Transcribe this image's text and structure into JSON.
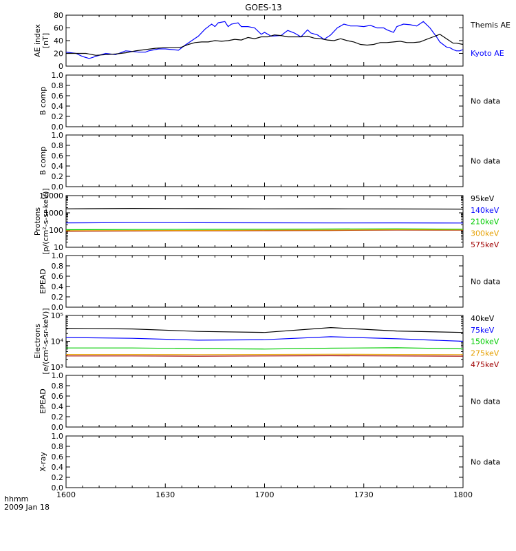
{
  "title": "GOES-13",
  "date_label": "2009 Jan 18",
  "time_unit_label": "hhmm",
  "x_ticks": [
    "1600",
    "1630",
    "1700",
    "1730",
    "1800"
  ],
  "no_data_text": "No data",
  "chart_data": [
    {
      "id": "ae",
      "type": "line",
      "ylabel": [
        "AE index",
        "[nT]"
      ],
      "ylim": [
        0,
        80
      ],
      "yticks": [
        0,
        20,
        40,
        60,
        80
      ],
      "x_range_minutes": [
        0,
        120
      ],
      "series": [
        {
          "name": "Kyoto AE",
          "color": "#0000ff",
          "x": [
            0,
            3,
            5,
            7,
            10,
            12,
            15,
            18,
            20,
            22,
            24,
            25,
            28,
            30,
            32,
            34,
            36,
            38,
            40,
            42,
            44,
            45,
            46,
            48,
            49,
            50,
            52,
            53,
            55,
            57,
            59,
            60,
            62,
            65,
            67,
            69,
            71,
            73,
            74,
            76,
            78,
            80,
            82,
            84,
            86,
            88,
            90,
            92,
            94,
            96,
            97,
            99,
            100,
            102,
            104,
            106,
            108,
            110,
            112,
            113,
            115,
            116,
            117,
            118,
            119,
            120
          ],
          "y": [
            22,
            20,
            15,
            12,
            17,
            20,
            18,
            24,
            23,
            22,
            22,
            24,
            27,
            27,
            26,
            25,
            33,
            40,
            47,
            58,
            66,
            62,
            68,
            70,
            62,
            66,
            68,
            62,
            62,
            60,
            50,
            53,
            47,
            48,
            56,
            52,
            46,
            57,
            52,
            49,
            42,
            49,
            60,
            66,
            63,
            63,
            62,
            64,
            60,
            60,
            57,
            53,
            62,
            66,
            65,
            63,
            70,
            60,
            46,
            38,
            30,
            29,
            26,
            24,
            24,
            26
          ]
        },
        {
          "name": "Themis AE",
          "color": "#000000",
          "x": [
            0,
            3,
            6,
            9,
            12,
            15,
            18,
            21,
            24,
            27,
            30,
            33,
            35,
            37,
            39,
            41,
            43,
            45,
            47,
            49,
            51,
            53,
            55,
            57,
            59,
            61,
            63,
            65,
            67,
            69,
            71,
            73,
            75,
            77,
            79,
            81,
            83,
            85,
            87,
            89,
            91,
            93,
            95,
            97,
            99,
            101,
            103,
            105,
            107,
            109,
            111,
            113,
            115,
            117,
            118,
            120
          ],
          "y": [
            20,
            20,
            20,
            17,
            18,
            19,
            21,
            24,
            26,
            28,
            29,
            29,
            30,
            34,
            37,
            38,
            38,
            40,
            39,
            40,
            42,
            41,
            45,
            43,
            46,
            46,
            49,
            48,
            46,
            46,
            46,
            47,
            44,
            43,
            41,
            40,
            43,
            40,
            38,
            34,
            33,
            34,
            37,
            37,
            38,
            39,
            37,
            37,
            38,
            42,
            46,
            50,
            43,
            36,
            36,
            34
          ]
        }
      ]
    },
    {
      "id": "b1",
      "type": "line",
      "ylabel": [
        "B comp"
      ],
      "ylim": [
        0,
        1
      ],
      "yticks": [
        "0.0",
        "0.2",
        "0.4",
        "0.6",
        "0.8",
        "1.0"
      ],
      "series": []
    },
    {
      "id": "b2",
      "type": "line",
      "ylabel": [
        "B comp"
      ],
      "ylim": [
        0,
        1
      ],
      "yticks": [
        "0.0",
        "0.2",
        "0.4",
        "0.6",
        "0.8",
        "1.0"
      ],
      "series": []
    },
    {
      "id": "protons",
      "type": "line",
      "log_scale": true,
      "ylabel": [
        "Protons",
        "[p/(cm²-s-sr-keV)]"
      ],
      "ylim": [
        10,
        10000
      ],
      "yticks": [
        "10",
        "100",
        "1000",
        "10000"
      ],
      "x_range_minutes": [
        0,
        120
      ],
      "series": [
        {
          "name": "575keV",
          "color": "#a00000",
          "x": [
            0,
            20,
            40,
            60,
            80,
            100,
            120
          ],
          "y": [
            85,
            88,
            90,
            92,
            95,
            100,
            98
          ]
        },
        {
          "name": "300keV",
          "color": "#e6a000",
          "x": [
            0,
            20,
            40,
            60,
            80,
            100,
            120
          ],
          "y": [
            92,
            94,
            95,
            98,
            100,
            105,
            103
          ]
        },
        {
          "name": "210keV",
          "color": "#00cc00",
          "x": [
            0,
            20,
            40,
            60,
            80,
            100,
            120
          ],
          "y": [
            105,
            108,
            110,
            112,
            115,
            118,
            112
          ]
        },
        {
          "name": "140keV",
          "color": "#0000ff",
          "x": [
            0,
            20,
            40,
            60,
            80,
            100,
            120
          ],
          "y": [
            260,
            270,
            265,
            262,
            258,
            260,
            255
          ]
        },
        {
          "name": "95keV",
          "color": "#000000",
          "x": [
            0,
            20,
            40,
            60,
            80,
            100,
            120
          ],
          "y": [
            1700,
            1800,
            1750,
            1700,
            1720,
            1680,
            1650
          ]
        }
      ]
    },
    {
      "id": "epead1",
      "type": "line",
      "ylabel": [
        "EPEAD"
      ],
      "ylim": [
        0,
        1
      ],
      "yticks": [
        "0.0",
        "0.2",
        "0.4",
        "0.6",
        "0.8",
        "1.0"
      ],
      "series": []
    },
    {
      "id": "electrons",
      "type": "line",
      "log_scale": true,
      "ylabel": [
        "Electrons",
        "[e/(cm²-s-sr-keV)]"
      ],
      "ylim": [
        1000,
        100000
      ],
      "yticks": [
        "10³",
        "10⁴",
        "10⁵"
      ],
      "x_range_minutes": [
        0,
        120
      ],
      "series": [
        {
          "name": "475keV",
          "color": "#a00000",
          "x": [
            0,
            20,
            40,
            60,
            80,
            100,
            120
          ],
          "y": [
            2700,
            2700,
            2650,
            2700,
            2750,
            2700,
            2650
          ]
        },
        {
          "name": "275keV",
          "color": "#e6a000",
          "x": [
            0,
            20,
            40,
            60,
            80,
            100,
            120
          ],
          "y": [
            3100,
            3100,
            3050,
            3100,
            3150,
            3100,
            3050
          ]
        },
        {
          "name": "150keV",
          "color": "#00cc00",
          "x": [
            0,
            20,
            40,
            60,
            80,
            100,
            120
          ],
          "y": [
            5500,
            5500,
            5200,
            5000,
            5400,
            5600,
            5100
          ]
        },
        {
          "name": "75keV",
          "color": "#0000ff",
          "x": [
            0,
            20,
            40,
            60,
            80,
            100,
            120
          ],
          "y": [
            14000,
            13000,
            11000,
            11500,
            15000,
            12500,
            10000
          ]
        },
        {
          "name": "40keV",
          "color": "#000000",
          "x": [
            0,
            20,
            40,
            60,
            80,
            100,
            120
          ],
          "y": [
            32000,
            30000,
            24000,
            22000,
            34000,
            25000,
            22000
          ]
        }
      ]
    },
    {
      "id": "epead2",
      "type": "line",
      "ylabel": [
        "EPEAD"
      ],
      "ylim": [
        0,
        1
      ],
      "yticks": [
        "0.0",
        "0.2",
        "0.4",
        "0.6",
        "0.8",
        "1.0"
      ],
      "series": []
    },
    {
      "id": "xray",
      "type": "line",
      "ylabel": [
        "X-ray"
      ],
      "ylim": [
        0,
        1
      ],
      "yticks": [
        "0.0",
        "0.2",
        "0.4",
        "0.6",
        "0.8",
        "1.0"
      ],
      "series": []
    }
  ]
}
